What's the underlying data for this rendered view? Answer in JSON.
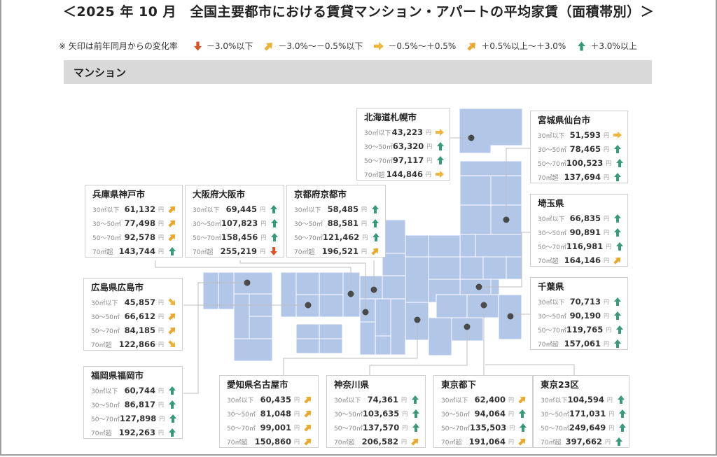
{
  "title": "＜2025 年 10 月　全国主要都市における賃貸マンション・アパートの平均家賃（面積帯別）＞",
  "legend": {
    "note": "※ 矢印は前年同月からの変化率",
    "items": [
      {
        "icon": "down",
        "label": "－3.0%以下",
        "color": "#d9542a"
      },
      {
        "icon": "down-right",
        "label": "－3.0%～－0.5%以下",
        "color": "#e8b33a"
      },
      {
        "icon": "right",
        "label": "－0.5%～＋0.5%",
        "color": "#f0b53c"
      },
      {
        "icon": "up-right",
        "label": "＋0.5%以上～＋3.0%",
        "color": "#e8a830"
      },
      {
        "icon": "up",
        "label": "＋3.0%以上",
        "color": "#3a9a78"
      }
    ]
  },
  "section": {
    "label": "マンション"
  },
  "colors": {
    "tile": "#b2c6e8",
    "dot": "#4a4a4a",
    "line": "#bdbdbd",
    "down": "#d9542a",
    "down_right": "#e8b33a",
    "right": "#f0b53c",
    "up_right": "#e8a830",
    "up": "#3a9a78"
  },
  "chart_data": {
    "type": "table",
    "title": "2025年10月 全国主要都市における賃貸マンション・アパートの平均家賃（面積帯別）",
    "subtitle": "マンション",
    "unit": "円",
    "columns": [
      "30㎡以下",
      "30～50㎡",
      "50～70㎡",
      "70㎡超"
    ],
    "cities": [
      {
        "name": "北海道札幌市",
        "rows": [
          {
            "label": "30㎡以下",
            "value": "43,223",
            "trend": "right"
          },
          {
            "label": "30～50㎡",
            "value": "63,320",
            "trend": "up"
          },
          {
            "label": "50～70㎡",
            "value": "97,117",
            "trend": "up"
          },
          {
            "label": "70㎡超",
            "value": "144,846",
            "trend": "right"
          }
        ]
      },
      {
        "name": "宮城県仙台市",
        "rows": [
          {
            "label": "30㎡以下",
            "value": "51,593",
            "trend": "right"
          },
          {
            "label": "30～50㎡",
            "value": "78,465",
            "trend": "up"
          },
          {
            "label": "50～70㎡",
            "value": "100,523",
            "trend": "up"
          },
          {
            "label": "70㎡超",
            "value": "137,694",
            "trend": "up"
          }
        ]
      },
      {
        "name": "埼玉県",
        "rows": [
          {
            "label": "30㎡以下",
            "value": "66,835",
            "trend": "up"
          },
          {
            "label": "30～50㎡",
            "value": "90,891",
            "trend": "up"
          },
          {
            "label": "50～70㎡",
            "value": "116,981",
            "trend": "up"
          },
          {
            "label": "70㎡超",
            "value": "164,146",
            "trend": "up-right"
          }
        ]
      },
      {
        "name": "千葉県",
        "rows": [
          {
            "label": "30㎡以下",
            "value": "70,713",
            "trend": "up"
          },
          {
            "label": "30～50㎡",
            "value": "90,190",
            "trend": "up"
          },
          {
            "label": "50～70㎡",
            "value": "119,765",
            "trend": "up"
          },
          {
            "label": "70㎡超",
            "value": "157,061",
            "trend": "up"
          }
        ]
      },
      {
        "name": "兵庫県神戸市",
        "rows": [
          {
            "label": "30㎡以下",
            "value": "61,132",
            "trend": "up-right"
          },
          {
            "label": "30～50㎡",
            "value": "77,498",
            "trend": "up-right"
          },
          {
            "label": "50～70㎡",
            "value": "92,578",
            "trend": "up-right"
          },
          {
            "label": "70㎡超",
            "value": "143,744",
            "trend": "up"
          }
        ]
      },
      {
        "name": "大阪府大阪市",
        "rows": [
          {
            "label": "30㎡以下",
            "value": "69,445",
            "trend": "up"
          },
          {
            "label": "30～50㎡",
            "value": "107,823",
            "trend": "up"
          },
          {
            "label": "50～70㎡",
            "value": "158,456",
            "trend": "up"
          },
          {
            "label": "70㎡超",
            "value": "255,219",
            "trend": "down"
          }
        ]
      },
      {
        "name": "京都府京都市",
        "rows": [
          {
            "label": "30㎡以下",
            "value": "58,485",
            "trend": "up"
          },
          {
            "label": "30～50㎡",
            "value": "88,581",
            "trend": "up"
          },
          {
            "label": "50～70㎡",
            "value": "121,462",
            "trend": "up"
          },
          {
            "label": "70㎡超",
            "value": "196,521",
            "trend": "up-right"
          }
        ]
      },
      {
        "name": "広島県広島市",
        "rows": [
          {
            "label": "30㎡以下",
            "value": "45,857",
            "trend": "down-right"
          },
          {
            "label": "30～50㎡",
            "value": "66,612",
            "trend": "up-right"
          },
          {
            "label": "50～70㎡",
            "value": "84,185",
            "trend": "up-right"
          },
          {
            "label": "70㎡超",
            "value": "122,866",
            "trend": "down-right"
          }
        ]
      },
      {
        "name": "福岡県福岡市",
        "rows": [
          {
            "label": "30㎡以下",
            "value": "60,744",
            "trend": "up"
          },
          {
            "label": "30～50㎡",
            "value": "86,817",
            "trend": "up"
          },
          {
            "label": "50～70㎡",
            "value": "127,898",
            "trend": "up"
          },
          {
            "label": "70㎡超",
            "value": "192,263",
            "trend": "up"
          }
        ]
      },
      {
        "name": "愛知県名古屋市",
        "rows": [
          {
            "label": "30㎡以下",
            "value": "60,435",
            "trend": "up-right"
          },
          {
            "label": "30～50㎡",
            "value": "81,048",
            "trend": "up-right"
          },
          {
            "label": "50～70㎡",
            "value": "99,001",
            "trend": "up-right"
          },
          {
            "label": "70㎡超",
            "value": "150,860",
            "trend": "up-right"
          }
        ]
      },
      {
        "name": "神奈川県",
        "rows": [
          {
            "label": "30㎡以下",
            "value": "74,361",
            "trend": "up"
          },
          {
            "label": "30～50㎡",
            "value": "103,635",
            "trend": "up"
          },
          {
            "label": "50～70㎡",
            "value": "137,570",
            "trend": "up"
          },
          {
            "label": "70㎡超",
            "value": "206,582",
            "trend": "up-right"
          }
        ]
      },
      {
        "name": "東京都下",
        "rows": [
          {
            "label": "30㎡以下",
            "value": "62,400",
            "trend": "up-right"
          },
          {
            "label": "30～50㎡",
            "value": "94,064",
            "trend": "up"
          },
          {
            "label": "50～70㎡",
            "value": "135,503",
            "trend": "up"
          },
          {
            "label": "70㎡超",
            "value": "191,064",
            "trend": "up-right"
          }
        ]
      },
      {
        "name": "東京23区",
        "rows": [
          {
            "label": "30㎡以下",
            "value": "104,594",
            "trend": "up"
          },
          {
            "label": "30～50㎡",
            "value": "171,031",
            "trend": "up"
          },
          {
            "label": "50～70㎡",
            "value": "249,649",
            "trend": "up"
          },
          {
            "label": "70㎡超",
            "value": "397,662",
            "trend": "up"
          }
        ]
      }
    ]
  }
}
